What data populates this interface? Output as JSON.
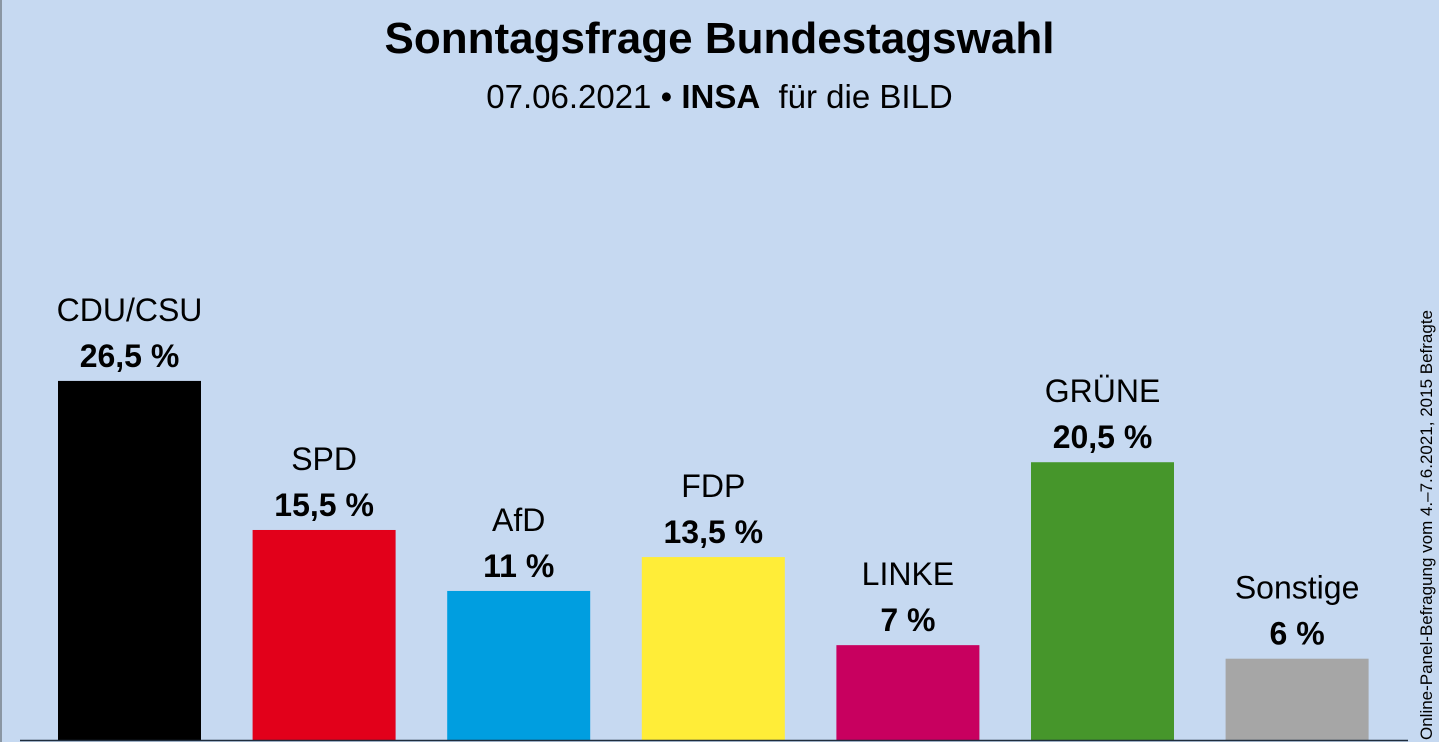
{
  "chart_data": {
    "type": "bar",
    "title": "Sonntagsfrage Bundestagswahl",
    "subtitle": {
      "date": "07.06.2021",
      "separator": "•",
      "institute": "INSA",
      "client": "für die BILD"
    },
    "note": "Online-Panel-Befragung vom 4.–7.6.2021, 2015 Befragte",
    "categories": [
      "CDU/CSU",
      "SPD",
      "AfD",
      "FDP",
      "LINKE",
      "GRÜNE",
      "Sonstige"
    ],
    "values": [
      26.5,
      15.5,
      11,
      13.5,
      7,
      20.5,
      6
    ],
    "value_labels": [
      "26,5 %",
      "15,5 %",
      "11 %",
      "13,5 %",
      "7 %",
      "20,5 %",
      "6 %"
    ],
    "colors": [
      "#000000",
      "#e2001a",
      "#009ee0",
      "#ffed38",
      "#c8005f",
      "#46962b",
      "#a6a6a6"
    ],
    "unit": "%",
    "xlabel": "",
    "ylabel": "",
    "ylim": [
      0,
      27
    ],
    "grid": false,
    "legend": "none"
  },
  "background_color": "#c6d9f1"
}
